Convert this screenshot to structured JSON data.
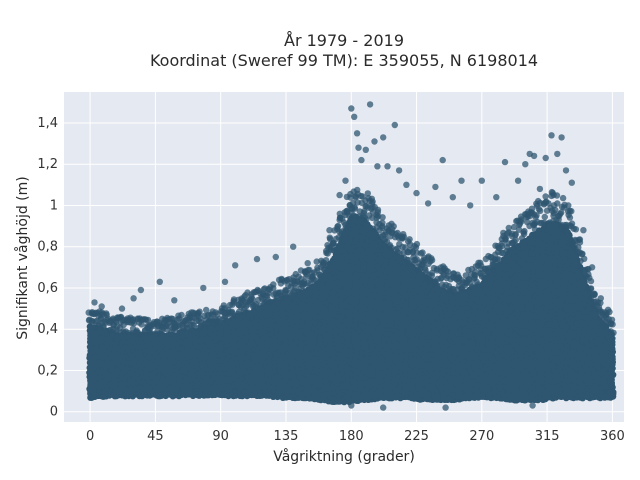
{
  "chart_data": {
    "type": "scatter",
    "title": "År 1979 - 2019",
    "subtitle": "Koordinat (Sweref 99 TM): E 359055, N 6198014",
    "xlabel": "Vågriktning (grader)",
    "ylabel": "Signifikant våghöjd (m)",
    "xlim": [
      -18,
      368
    ],
    "ylim": [
      -0.05,
      1.55
    ],
    "xticks": [
      0,
      45,
      90,
      135,
      180,
      225,
      270,
      315,
      360
    ],
    "xtick_labels": [
      "0",
      "45",
      "90",
      "135",
      "180",
      "225",
      "270",
      "315",
      "360"
    ],
    "yticks": [
      0,
      0.2,
      0.4,
      0.6,
      0.8,
      1.0,
      1.2,
      1.4
    ],
    "ytick_labels": [
      "0",
      "0,2",
      "0,4",
      "0,6",
      "0,8",
      "1",
      "1,2",
      "1,4"
    ],
    "grid": true,
    "marker_color": "#2f5670",
    "background_color": "#e5e9f1",
    "envelope": {
      "x": [
        0,
        15,
        30,
        45,
        60,
        75,
        90,
        105,
        120,
        135,
        150,
        160,
        170,
        180,
        190,
        200,
        210,
        220,
        230,
        240,
        250,
        260,
        270,
        280,
        290,
        300,
        310,
        320,
        330,
        340,
        350,
        360
      ],
      "y_min": [
        0.07,
        0.08,
        0.08,
        0.08,
        0.08,
        0.08,
        0.08,
        0.08,
        0.08,
        0.07,
        0.07,
        0.06,
        0.05,
        0.05,
        0.06,
        0.07,
        0.07,
        0.07,
        0.06,
        0.06,
        0.06,
        0.07,
        0.07,
        0.07,
        0.06,
        0.06,
        0.06,
        0.07,
        0.07,
        0.07,
        0.07,
        0.07
      ],
      "y_dense_max": [
        0.42,
        0.38,
        0.37,
        0.37,
        0.38,
        0.4,
        0.42,
        0.47,
        0.51,
        0.55,
        0.59,
        0.64,
        0.78,
        0.95,
        0.93,
        0.83,
        0.77,
        0.72,
        0.66,
        0.6,
        0.57,
        0.58,
        0.62,
        0.7,
        0.78,
        0.83,
        0.88,
        0.92,
        0.87,
        0.65,
        0.45,
        0.38
      ]
    },
    "outliers": [
      {
        "x": 3,
        "y": 0.53
      },
      {
        "x": 8,
        "y": 0.51
      },
      {
        "x": 22,
        "y": 0.5
      },
      {
        "x": 30,
        "y": 0.55
      },
      {
        "x": 35,
        "y": 0.59
      },
      {
        "x": 48,
        "y": 0.63
      },
      {
        "x": 58,
        "y": 0.54
      },
      {
        "x": 78,
        "y": 0.6
      },
      {
        "x": 93,
        "y": 0.63
      },
      {
        "x": 100,
        "y": 0.71
      },
      {
        "x": 115,
        "y": 0.74
      },
      {
        "x": 128,
        "y": 0.75
      },
      {
        "x": 140,
        "y": 0.8
      },
      {
        "x": 150,
        "y": 0.72
      },
      {
        "x": 165,
        "y": 0.88
      },
      {
        "x": 172,
        "y": 1.05
      },
      {
        "x": 176,
        "y": 1.12
      },
      {
        "x": 180,
        "y": 1.47
      },
      {
        "x": 182,
        "y": 1.43
      },
      {
        "x": 184,
        "y": 1.35
      },
      {
        "x": 185,
        "y": 1.28
      },
      {
        "x": 187,
        "y": 1.22
      },
      {
        "x": 190,
        "y": 1.27
      },
      {
        "x": 193,
        "y": 1.49
      },
      {
        "x": 196,
        "y": 1.31
      },
      {
        "x": 198,
        "y": 1.19
      },
      {
        "x": 202,
        "y": 1.33
      },
      {
        "x": 205,
        "y": 1.19
      },
      {
        "x": 210,
        "y": 1.39
      },
      {
        "x": 213,
        "y": 1.17
      },
      {
        "x": 218,
        "y": 1.1
      },
      {
        "x": 225,
        "y": 1.06
      },
      {
        "x": 233,
        "y": 1.01
      },
      {
        "x": 238,
        "y": 1.09
      },
      {
        "x": 243,
        "y": 1.22
      },
      {
        "x": 250,
        "y": 1.04
      },
      {
        "x": 256,
        "y": 1.12
      },
      {
        "x": 262,
        "y": 1.0
      },
      {
        "x": 270,
        "y": 1.12
      },
      {
        "x": 280,
        "y": 1.04
      },
      {
        "x": 286,
        "y": 1.21
      },
      {
        "x": 295,
        "y": 1.12
      },
      {
        "x": 300,
        "y": 1.2
      },
      {
        "x": 303,
        "y": 1.25
      },
      {
        "x": 306,
        "y": 1.24
      },
      {
        "x": 310,
        "y": 1.08
      },
      {
        "x": 314,
        "y": 1.23
      },
      {
        "x": 318,
        "y": 1.34
      },
      {
        "x": 322,
        "y": 1.25
      },
      {
        "x": 325,
        "y": 1.33
      },
      {
        "x": 328,
        "y": 1.17
      },
      {
        "x": 332,
        "y": 1.11
      },
      {
        "x": 340,
        "y": 0.88
      },
      {
        "x": 346,
        "y": 0.7
      },
      {
        "x": 352,
        "y": 0.55
      },
      {
        "x": 180,
        "y": 0.03
      },
      {
        "x": 202,
        "y": 0.02
      },
      {
        "x": 245,
        "y": 0.02
      },
      {
        "x": 305,
        "y": 0.03
      }
    ]
  }
}
